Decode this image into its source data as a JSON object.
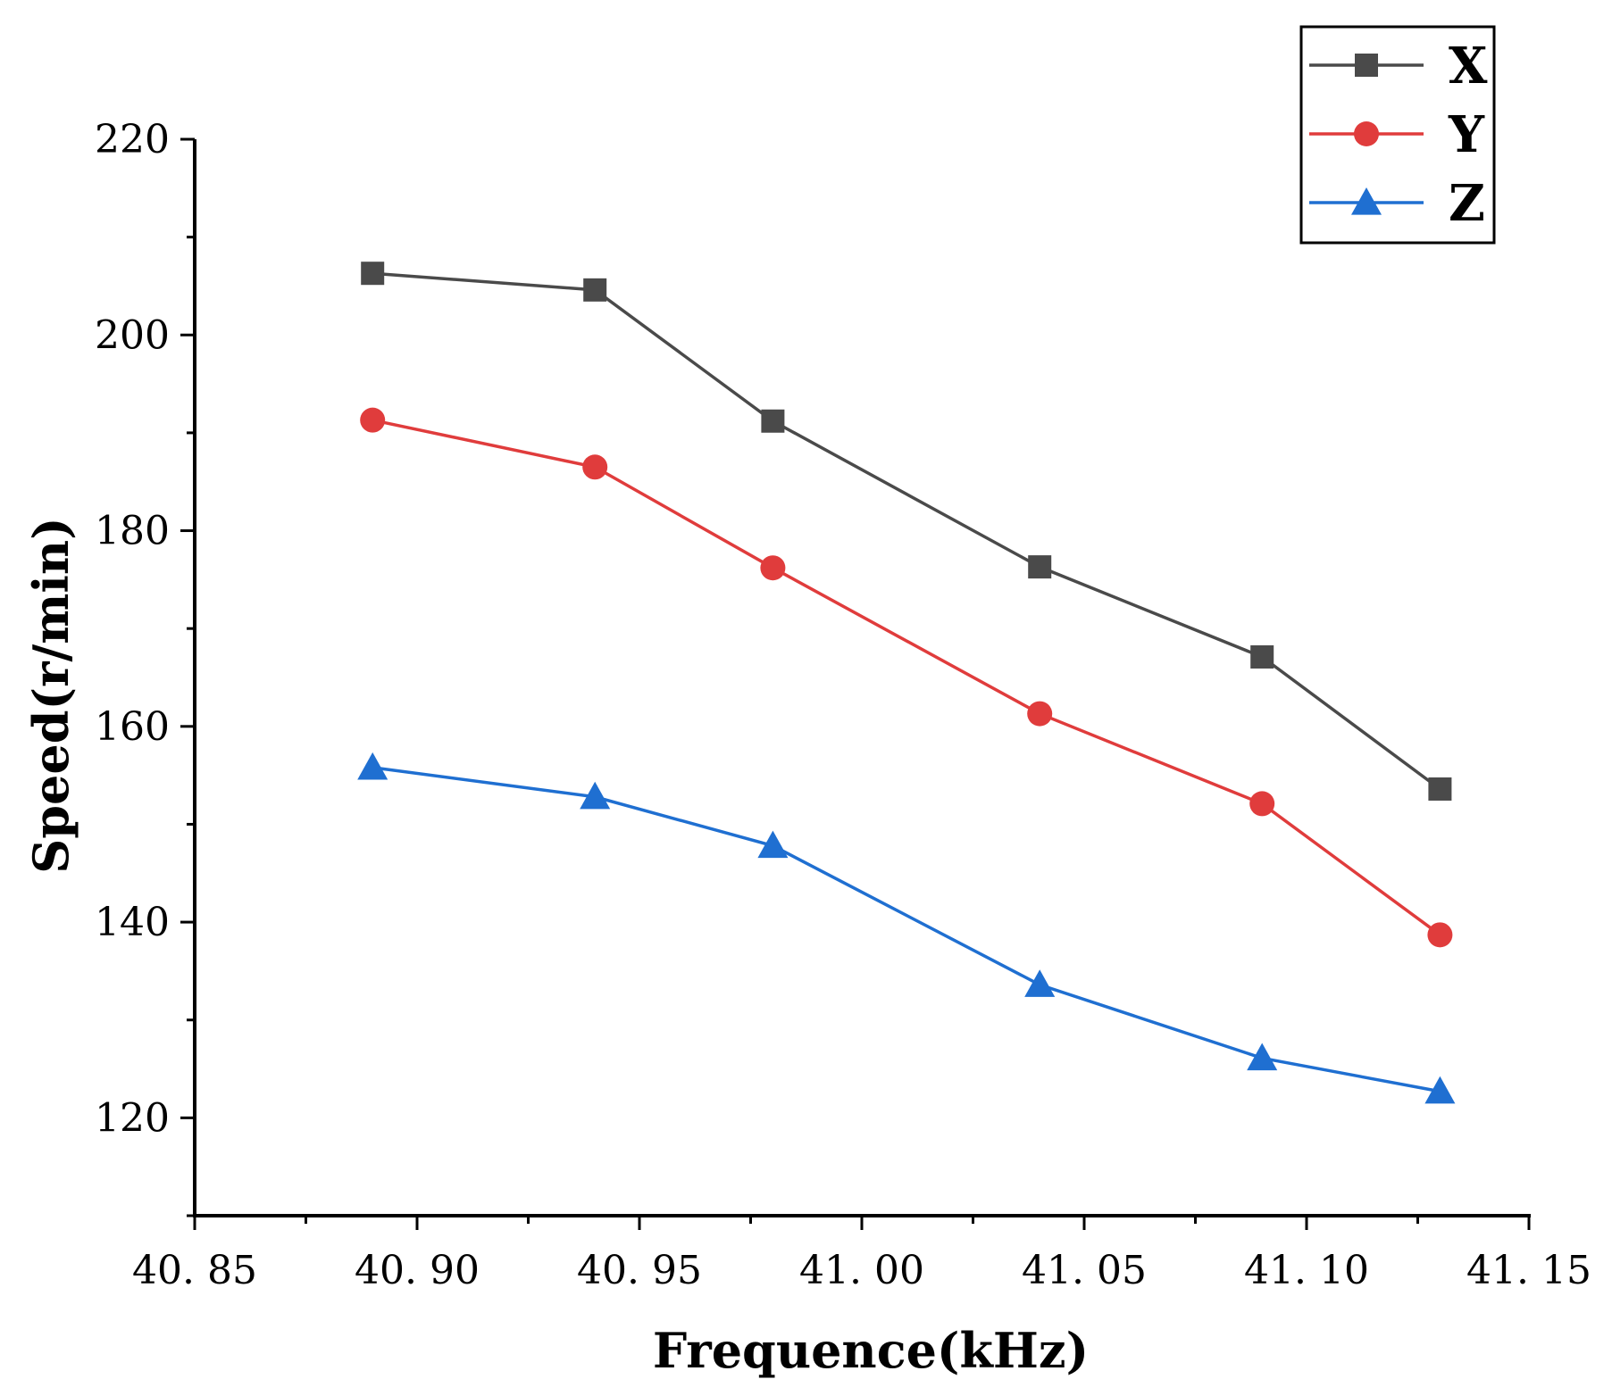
{
  "chart_data": {
    "type": "line",
    "title": "",
    "xlabel": "Frequence(kHz)",
    "ylabel": "Speed(r/min)",
    "xlim": [
      40.85,
      41.15
    ],
    "ylim": [
      110,
      220
    ],
    "x_ticks": [
      40.85,
      40.9,
      40.95,
      41.0,
      41.05,
      41.1,
      41.15
    ],
    "x_tick_labels": [
      "40. 85",
      "40. 90",
      "40. 95",
      "41. 00",
      "41. 05",
      "41. 10",
      "41. 15"
    ],
    "y_ticks": [
      120,
      140,
      160,
      180,
      200,
      220
    ],
    "y_tick_labels": [
      "120",
      "140",
      "160",
      "180",
      "200",
      "220"
    ],
    "grid": false,
    "legend_position": "top-right",
    "x": [
      40.89,
      40.94,
      40.98,
      41.04,
      41.09,
      41.13
    ],
    "series": [
      {
        "name": "X",
        "marker": "square",
        "color": "#4a4a4a",
        "values": [
          206.3,
          204.6,
          191.2,
          176.3,
          167.1,
          153.6
        ]
      },
      {
        "name": "Y",
        "marker": "circle",
        "color": "#e03c3c",
        "values": [
          191.3,
          186.5,
          176.2,
          161.3,
          152.1,
          138.7
        ]
      },
      {
        "name": "Z",
        "marker": "triangle",
        "color": "#1f6fd1",
        "values": [
          155.8,
          152.8,
          147.8,
          133.6,
          126.1,
          122.7
        ]
      }
    ]
  }
}
